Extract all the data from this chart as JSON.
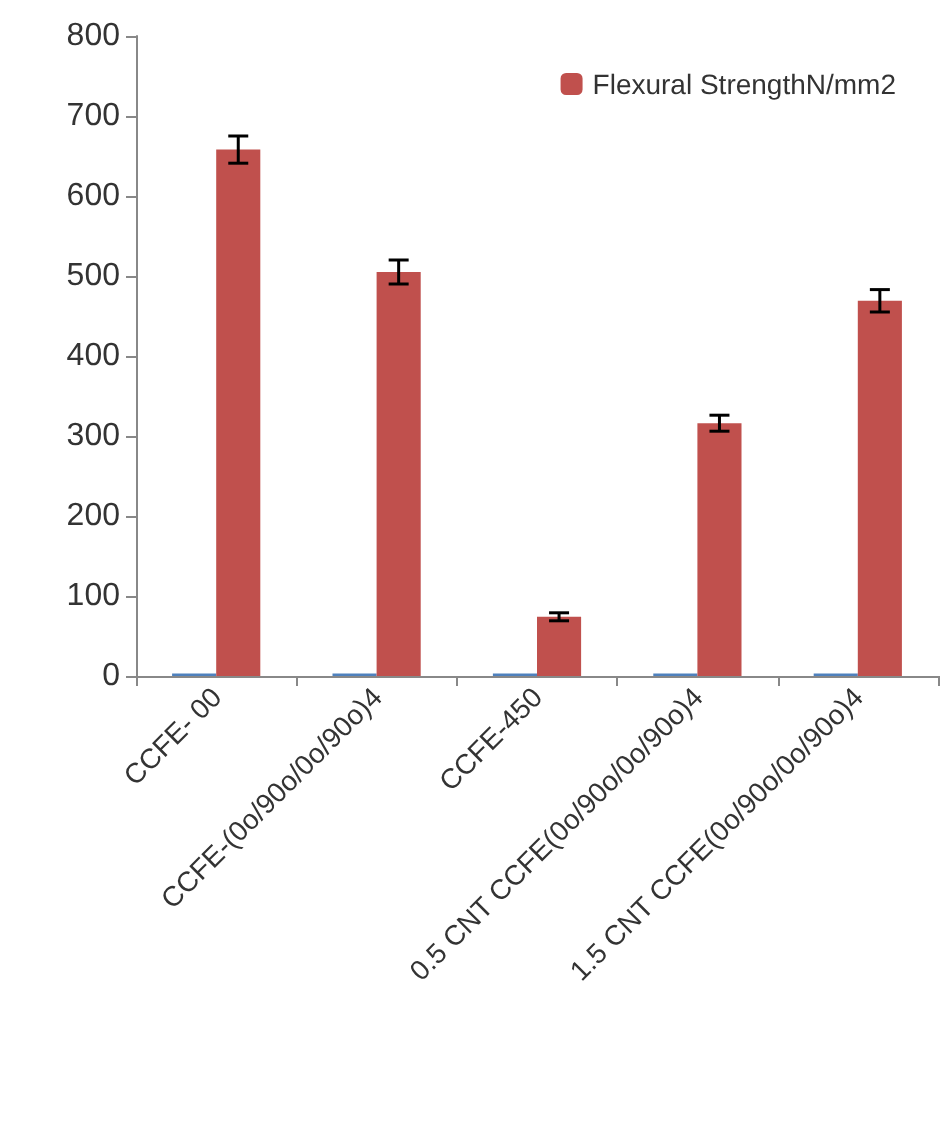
{
  "chart_data": {
    "type": "bar",
    "categories": [
      "CCFE- 00",
      "CCFE-(0o/90o/0o/90o)4",
      "CCFE-450",
      "0.5 CNT CCFE(0o/90o/0o/90o)4",
      "1.5 CNT CCFE(0o/90o/0o/90o)4"
    ],
    "series": [
      {
        "color": "#4f81bd",
        "values": [
          3,
          3,
          3,
          3,
          3
        ]
      },
      {
        "name": "Flexural StrengthN/mm2",
        "color": "#c0504d",
        "values": [
          658,
          505,
          74,
          316,
          469
        ],
        "errors": [
          17,
          15,
          5,
          10,
          14
        ]
      }
    ],
    "ylim": [
      0,
      800
    ],
    "yticks": [
      0,
      100,
      200,
      300,
      400,
      500,
      600,
      700,
      800
    ],
    "grid": false,
    "legend": "top right"
  }
}
